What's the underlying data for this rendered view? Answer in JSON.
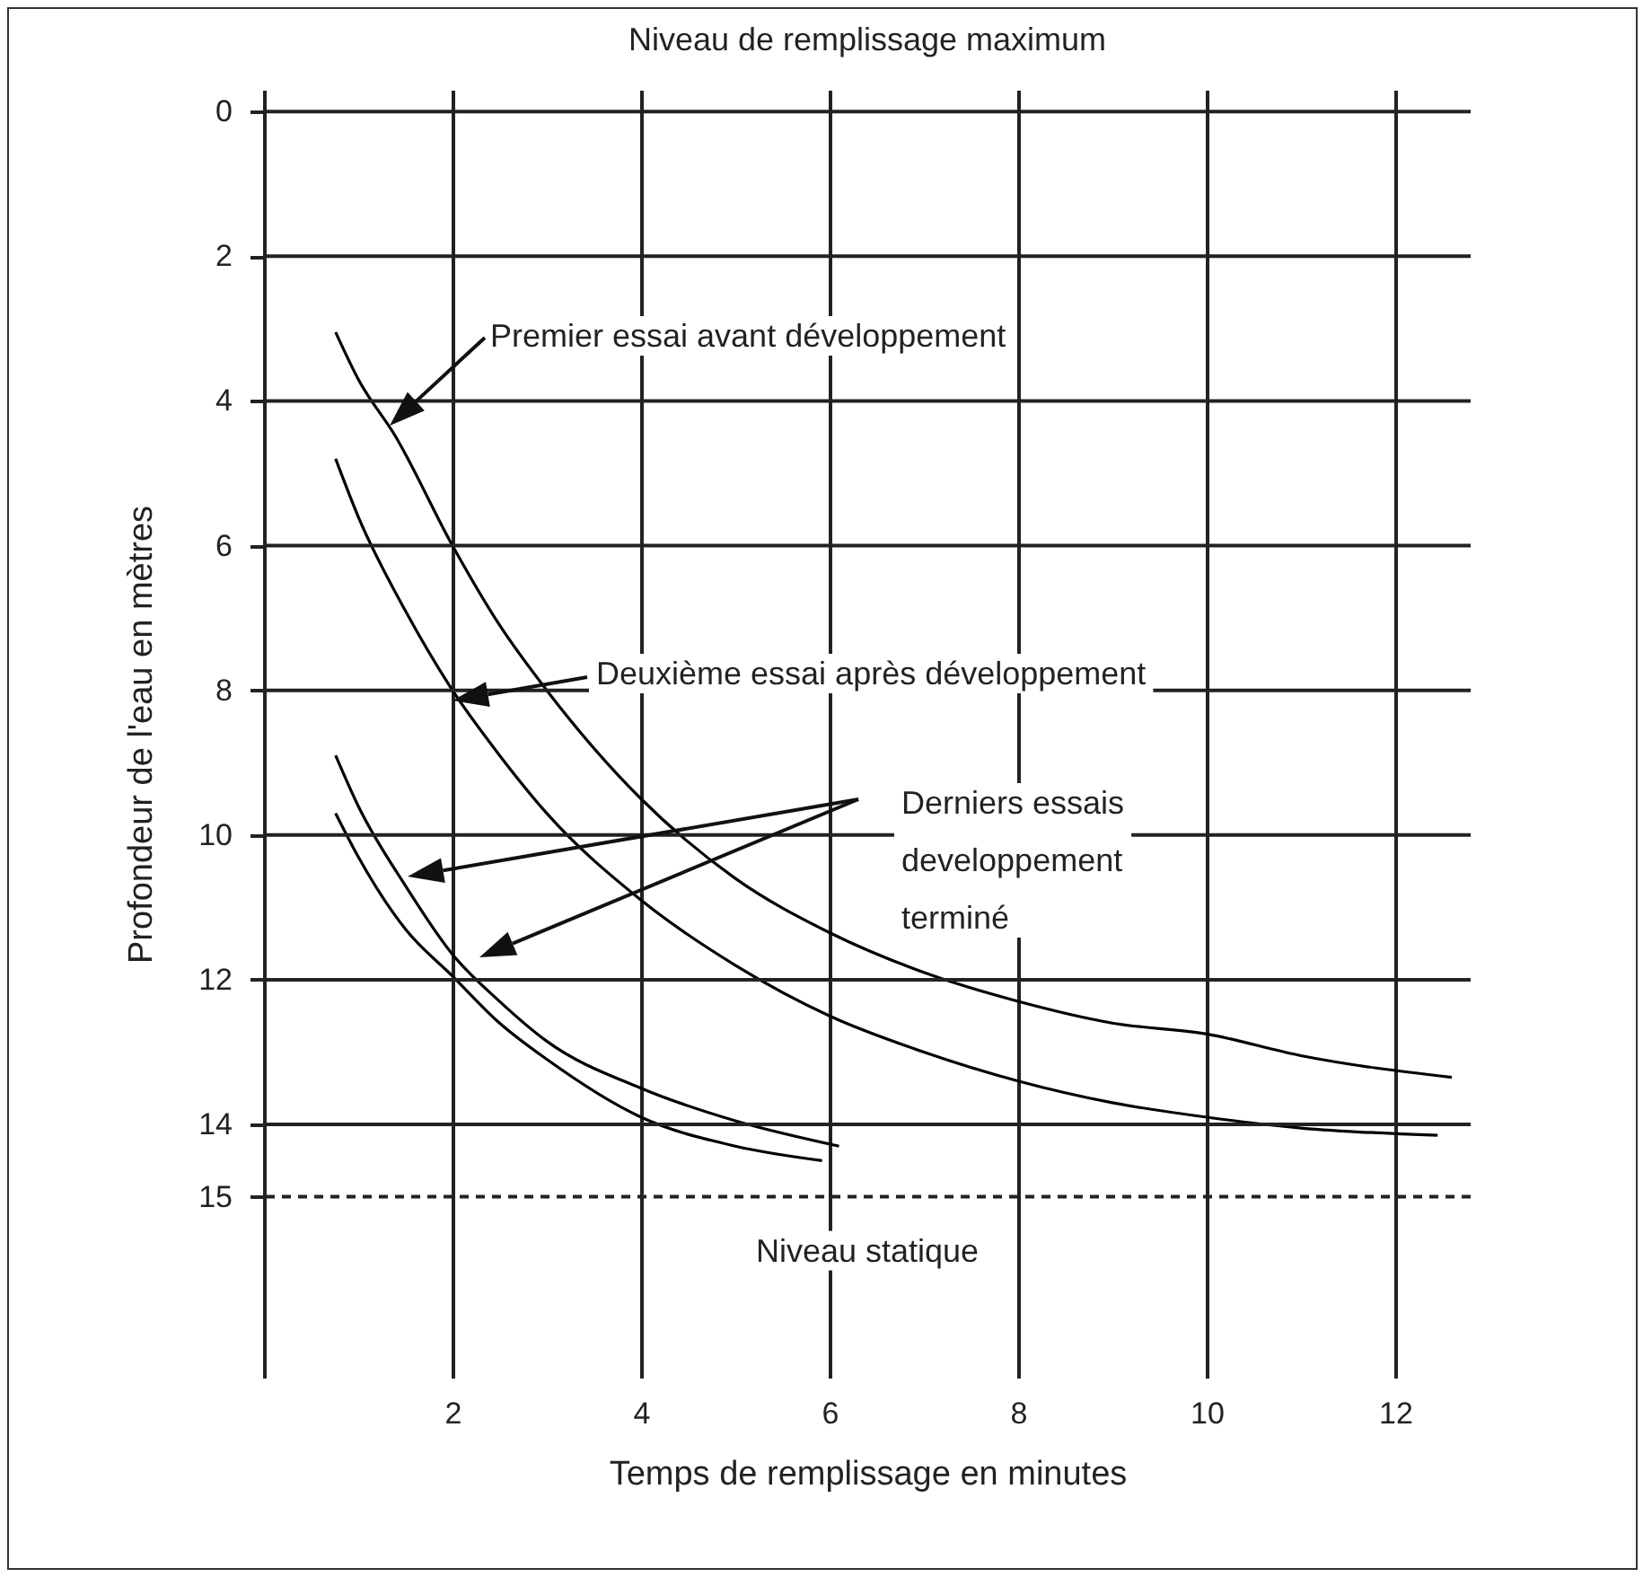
{
  "chart_data": {
    "type": "line",
    "title": "Niveau de remplissage maximum",
    "xlabel": "Temps de remplissage en minutes",
    "ylabel": "Profondeur de l'eau en mètres",
    "xlim": [
      0,
      12.8
    ],
    "xticks": [
      2,
      4,
      6,
      8,
      10,
      12
    ],
    "ylim": [
      17.5,
      -0.3
    ],
    "yticks": [
      0,
      2,
      4,
      6,
      8,
      10,
      12,
      14,
      15
    ],
    "grid": true,
    "series": [
      {
        "color": "#000000",
        "x": [
          0.76,
          1.0,
          1.4,
          2,
          2.5,
          3,
          4,
          5,
          6,
          7,
          8,
          9,
          10,
          11,
          12.6
        ],
        "values": [
          3.05,
          3.7,
          4.5,
          6.0,
          7.1,
          8.0,
          9.5,
          10.6,
          11.35,
          11.9,
          12.3,
          12.6,
          12.75,
          13.05,
          13.35
        ]
      },
      {
        "color": "#000000",
        "x": [
          0.76,
          1.0,
          1.5,
          2,
          2.5,
          3,
          4,
          5,
          6,
          7,
          8,
          9,
          10,
          11,
          12.45
        ],
        "values": [
          4.8,
          5.6,
          6.9,
          8.0,
          8.9,
          9.7,
          10.9,
          11.8,
          12.5,
          13.0,
          13.4,
          13.7,
          13.9,
          14.05,
          14.15
        ]
      },
      {
        "color": "#000000",
        "x": [
          0.76,
          1.0,
          1.5,
          2,
          2.5,
          3,
          4,
          5,
          6.1
        ],
        "values": [
          8.9,
          9.6,
          10.7,
          11.65,
          12.3,
          12.85,
          13.5,
          13.95,
          14.3
        ]
      },
      {
        "color": "#000000",
        "x": [
          0.76,
          1.0,
          1.5,
          2,
          2.5,
          3,
          4,
          5,
          5.92
        ],
        "values": [
          9.7,
          10.3,
          11.3,
          11.95,
          12.6,
          13.1,
          13.9,
          14.3,
          14.5
        ]
      }
    ],
    "ref_lines": [
      {
        "axis": "y",
        "value": 15,
        "label": "Niveau statique",
        "line_style": "dashed"
      }
    ],
    "annotations": [
      "Premier essai avant développement",
      "Deuxième essai après développement",
      "Derniers essais\ndeveloppement\nterminé"
    ]
  }
}
